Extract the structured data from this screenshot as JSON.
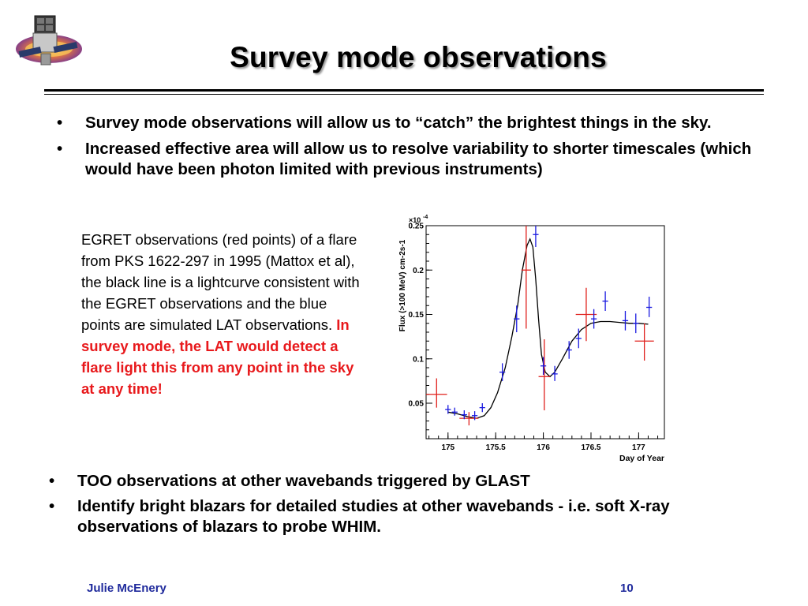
{
  "slide": {
    "title": "Survey mode observations",
    "top_bullets": [
      "Survey mode observations will allow us to “catch” the brightest things in the sky.",
      "Increased effective area will allow us to resolve variability to shorter timescales (which would have been photon limited with previous instruments)"
    ],
    "bullet_marker": "•",
    "caption": "EGRET observations (red points) of a flare from PKS 1622-297 in 1995 (Mattox et al), the black line  is a lightcurve consistent with the EGRET observations and the blue points are simulated LAT observations.",
    "caption_highlight": "In survey mode, the LAT would detect a flare light this from any point in the sky at any time!",
    "bottom_bullets": [
      "TOO observations at other wavebands triggered by GLAST",
      "Identify bright blazars for detailed studies at other wavebands - i.e. soft X-ray observations of blazars to probe WHIM."
    ],
    "footer_author": "Julie McEnery",
    "page_number": "10",
    "logo_icon": "glast-satellite-logo-icon"
  },
  "chart_data": {
    "type": "scatter",
    "xlabel": "Day of Year",
    "ylabel": "Flux (>100 MeV) cm-2s-1",
    "y_multiplier_label": "×10",
    "y_multiplier_exp": "-4",
    "xlim": [
      174.77,
      177.27
    ],
    "ylim": [
      0.01,
      0.25
    ],
    "x_ticks": [
      175,
      175.5,
      176,
      176.5,
      177
    ],
    "x_tick_labels": [
      "175",
      "175.5",
      "176",
      "176.5",
      "177"
    ],
    "y_ticks": [
      0.05,
      0.1,
      0.15,
      0.2,
      0.25
    ],
    "y_tick_labels": [
      "0.05",
      "0.1",
      "0.15",
      "0.2",
      "0.25"
    ],
    "colors": {
      "egret": "#e0201c",
      "lat": "#1a1ae0",
      "curve": "#000000"
    },
    "series": [
      {
        "kind": "points",
        "color_key": "egret",
        "points": [
          {
            "x": 174.88,
            "y": 0.06,
            "xerr": 0.11,
            "ylo": 0.045,
            "yhi": 0.078
          },
          {
            "x": 175.22,
            "y": 0.033,
            "xerr": 0.1,
            "ylo": 0.025,
            "yhi": 0.04
          },
          {
            "x": 175.82,
            "y": 0.2,
            "xerr": 0.05,
            "ylo": 0.134,
            "yhi": 0.25
          },
          {
            "x": 176.01,
            "y": 0.08,
            "xerr": 0.06,
            "ylo": 0.042,
            "yhi": 0.122
          },
          {
            "x": 176.45,
            "y": 0.15,
            "xerr": 0.11,
            "ylo": 0.12,
            "yhi": 0.18
          },
          {
            "x": 177.06,
            "y": 0.12,
            "xerr": 0.1,
            "ylo": 0.098,
            "yhi": 0.14
          }
        ]
      },
      {
        "kind": "points",
        "color_key": "lat",
        "points": [
          {
            "x": 175.0,
            "y": 0.043,
            "xerr": 0.03,
            "ylo": 0.038,
            "yhi": 0.048
          },
          {
            "x": 175.07,
            "y": 0.04,
            "xerr": 0.03,
            "ylo": 0.036,
            "yhi": 0.045
          },
          {
            "x": 175.17,
            "y": 0.037,
            "xerr": 0.03,
            "ylo": 0.032,
            "yhi": 0.042
          },
          {
            "x": 175.28,
            "y": 0.036,
            "xerr": 0.03,
            "ylo": 0.031,
            "yhi": 0.041
          },
          {
            "x": 175.36,
            "y": 0.045,
            "xerr": 0.03,
            "ylo": 0.04,
            "yhi": 0.05
          },
          {
            "x": 175.57,
            "y": 0.085,
            "xerr": 0.03,
            "ylo": 0.075,
            "yhi": 0.095
          },
          {
            "x": 175.72,
            "y": 0.145,
            "xerr": 0.03,
            "ylo": 0.13,
            "yhi": 0.16
          },
          {
            "x": 175.92,
            "y": 0.24,
            "xerr": 0.03,
            "ylo": 0.226,
            "yhi": 0.25
          },
          {
            "x": 176.0,
            "y": 0.092,
            "xerr": 0.03,
            "ylo": 0.082,
            "yhi": 0.102
          },
          {
            "x": 176.12,
            "y": 0.083,
            "xerr": 0.03,
            "ylo": 0.075,
            "yhi": 0.092
          },
          {
            "x": 176.27,
            "y": 0.11,
            "xerr": 0.03,
            "ylo": 0.1,
            "yhi": 0.12
          },
          {
            "x": 176.37,
            "y": 0.123,
            "xerr": 0.03,
            "ylo": 0.112,
            "yhi": 0.134
          },
          {
            "x": 176.53,
            "y": 0.145,
            "xerr": 0.03,
            "ylo": 0.134,
            "yhi": 0.156
          },
          {
            "x": 176.65,
            "y": 0.165,
            "xerr": 0.03,
            "ylo": 0.154,
            "yhi": 0.176
          },
          {
            "x": 176.86,
            "y": 0.143,
            "xerr": 0.03,
            "ylo": 0.132,
            "yhi": 0.154
          },
          {
            "x": 176.97,
            "y": 0.14,
            "xerr": 0.03,
            "ylo": 0.129,
            "yhi": 0.151
          },
          {
            "x": 177.11,
            "y": 0.158,
            "xerr": 0.03,
            "ylo": 0.147,
            "yhi": 0.17
          }
        ]
      },
      {
        "kind": "line",
        "color_key": "curve",
        "x": [
          175.0,
          175.1,
          175.2,
          175.3,
          175.38,
          175.45,
          175.52,
          175.6,
          175.67,
          175.73,
          175.78,
          175.83,
          175.86,
          175.89,
          175.92,
          175.95,
          175.98,
          176.02,
          176.07,
          176.12,
          176.2,
          176.3,
          176.4,
          176.5,
          176.6,
          176.7,
          176.8,
          176.9,
          177.0,
          177.1
        ],
        "y": [
          0.04,
          0.038,
          0.035,
          0.033,
          0.036,
          0.045,
          0.062,
          0.09,
          0.125,
          0.16,
          0.2,
          0.228,
          0.235,
          0.226,
          0.19,
          0.145,
          0.105,
          0.085,
          0.08,
          0.085,
          0.1,
          0.12,
          0.133,
          0.14,
          0.142,
          0.142,
          0.141,
          0.14,
          0.14,
          0.139
        ]
      }
    ]
  }
}
